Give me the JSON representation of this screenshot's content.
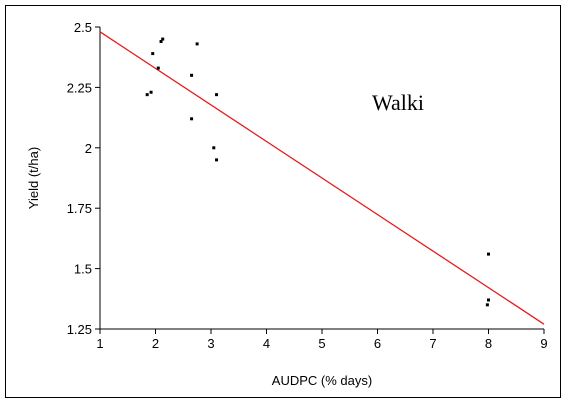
{
  "chart_data": {
    "type": "scatter",
    "x_label": "AUDPC (% days)",
    "y_label": "Yield (t/ha)",
    "annotation": "Walki",
    "x": [
      1.85,
      1.92,
      1.95,
      2.05,
      2.1,
      2.13,
      2.65,
      2.75,
      2.65,
      3.05,
      3.1,
      3.1,
      8.0,
      8.0,
      7.98
    ],
    "values": [
      2.22,
      2.23,
      2.39,
      2.33,
      2.44,
      2.45,
      2.3,
      2.43,
      2.12,
      2.0,
      1.95,
      2.22,
      1.56,
      1.37,
      1.35
    ],
    "color": "#000000",
    "trend_line": {
      "x": [
        1,
        9
      ],
      "values": [
        2.48,
        1.27
      ],
      "color": "#e8191a"
    },
    "xlim": [
      1,
      9
    ],
    "xticks": [
      1,
      2,
      3,
      4,
      5,
      6,
      7,
      8,
      9
    ],
    "ylim": [
      1.25,
      2.5
    ],
    "yticks": [
      1.25,
      1.5,
      1.75,
      2,
      2.25,
      2.5
    ]
  }
}
